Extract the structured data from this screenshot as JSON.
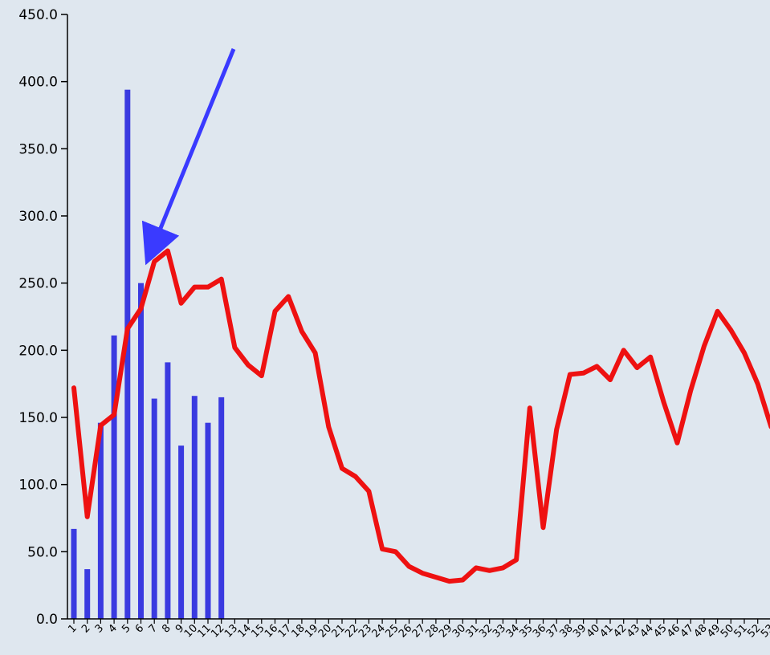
{
  "chart_data": {
    "type": "bar",
    "title": "",
    "xlabel": "",
    "ylabel": "",
    "ylim": [
      0,
      450
    ],
    "y_ticks": [
      "0.0",
      "50.0",
      "100.0",
      "150.0",
      "200.0",
      "250.0",
      "300.0",
      "350.0",
      "400.0",
      "450.0"
    ],
    "x_ticks": [
      "1",
      "2",
      "3",
      "4",
      "5",
      "6",
      "7",
      "8",
      "9",
      "10",
      "11",
      "12",
      "13",
      "14",
      "15",
      "16",
      "17",
      "18",
      "19",
      "20",
      "21",
      "22",
      "23",
      "24",
      "25",
      "26",
      "27",
      "28",
      "29",
      "30",
      "31",
      "32",
      "33",
      "34",
      "35",
      "36",
      "37",
      "38",
      "39",
      "40",
      "41",
      "42",
      "43",
      "44",
      "45",
      "46",
      "47",
      "48",
      "49",
      "50",
      "51",
      "52",
      "53"
    ],
    "background": "#dfe7ef",
    "bars": {
      "color": "#3a3ae0",
      "x": [
        1,
        2,
        3,
        4,
        5,
        6,
        7,
        8,
        9,
        10,
        11,
        12
      ],
      "values": [
        67,
        37,
        146,
        211,
        394,
        250,
        164,
        191,
        129,
        166,
        146,
        165
      ]
    },
    "line": {
      "color": "#ee1111",
      "x": [
        1,
        2,
        3,
        4,
        5,
        6,
        7,
        8,
        9,
        10,
        11,
        12,
        13,
        14,
        15,
        16,
        17,
        18,
        19,
        20,
        21,
        22,
        23,
        24,
        25,
        26,
        27,
        28,
        29,
        30,
        31,
        32,
        33,
        34,
        35,
        36,
        37,
        38,
        39,
        40,
        41,
        42,
        43,
        44,
        45,
        46,
        47,
        48,
        49,
        50,
        51,
        52,
        53
      ],
      "values": [
        172,
        76,
        144,
        152,
        216,
        231,
        266,
        274,
        235,
        247,
        247,
        253,
        202,
        189,
        181,
        229,
        240,
        214,
        198,
        143,
        112,
        106,
        95,
        52,
        50,
        39,
        34,
        31,
        28,
        29,
        38,
        36,
        38,
        44,
        157,
        68,
        141,
        182,
        183,
        188,
        178,
        200,
        187,
        195,
        161,
        131,
        170,
        203,
        229,
        215,
        198,
        175,
        143
      ]
    },
    "annotation": {
      "type": "arrow",
      "color": "#3a3aff",
      "target_x": 6.5,
      "target_y": 268
    }
  }
}
